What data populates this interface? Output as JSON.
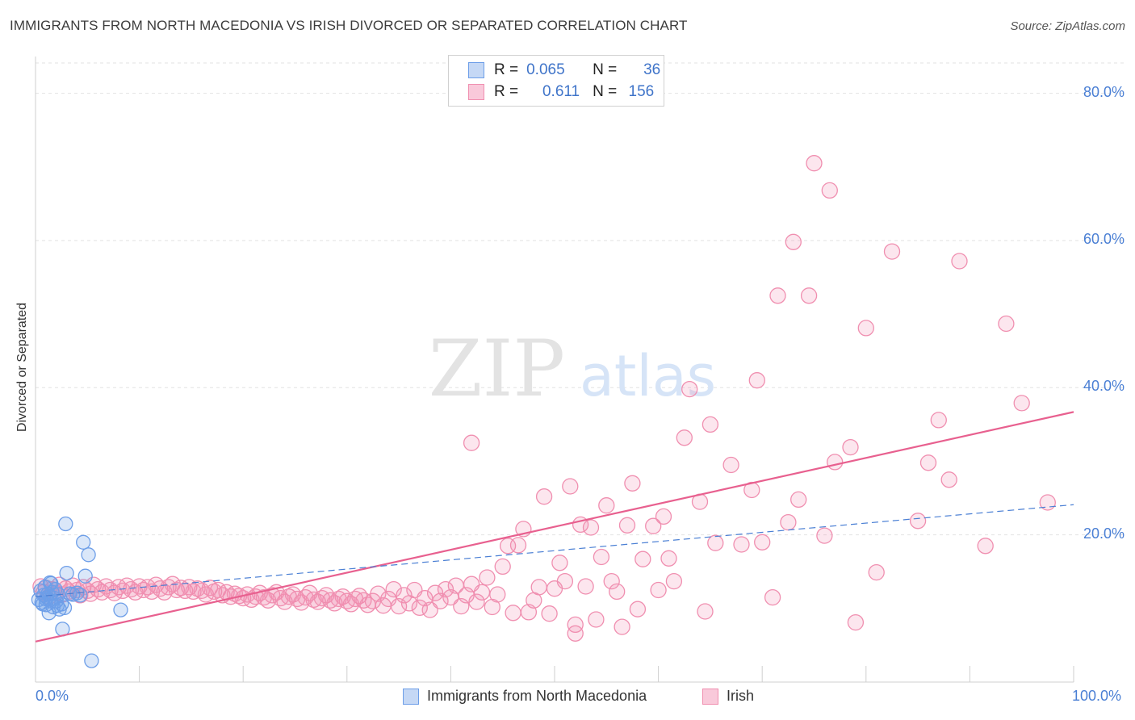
{
  "title": "IMMIGRANTS FROM NORTH MACEDONIA VS IRISH DIVORCED OR SEPARATED CORRELATION CHART",
  "source": "Source: ZipAtlas.com",
  "watermark": {
    "zip": "ZIP",
    "atlas": "atlas"
  },
  "legend": {
    "row1": {
      "r_label": "R =",
      "r_value": "0.065",
      "n_label": "N =",
      "n_value": "36"
    },
    "row2": {
      "r_label": "R =",
      "r_value": "0.611",
      "n_label": "N =",
      "n_value": "156"
    }
  },
  "colors": {
    "blue": "#6d9ee8",
    "pink": "#f08fb0",
    "pink_line": "#e8608f",
    "blue_line": "#4a7fd4"
  },
  "chart_data": {
    "type": "scatter",
    "title": "IMMIGRANTS FROM NORTH MACEDONIA VS IRISH DIVORCED OR SEPARATED CORRELATION CHART",
    "xlabel": "",
    "ylabel": "Divorced or Separated",
    "xlim": [
      0,
      100
    ],
    "ylim": [
      0,
      85
    ],
    "x_tick_labels": [
      "0.0%",
      "100.0%"
    ],
    "y_tick_labels": [
      "20.0%",
      "40.0%",
      "60.0%",
      "80.0%"
    ],
    "y_tick_values": [
      20,
      40,
      60,
      80
    ],
    "grid": true,
    "legend_position": "bottom",
    "series": [
      {
        "name": "Immigrants from North Macedonia",
        "color": "#6d9ee8",
        "r": 0.065,
        "n": 36,
        "trend": {
          "x0": 0,
          "y0": 11.6,
          "x1": 100,
          "y1": 24.1,
          "style": "dashed"
        },
        "points": [
          [
            0.3,
            11.2
          ],
          [
            0.5,
            12.4
          ],
          [
            0.6,
            10.8
          ],
          [
            0.8,
            11.8
          ],
          [
            0.9,
            12.9
          ],
          [
            1.0,
            10.5
          ],
          [
            1.1,
            11.5
          ],
          [
            1.2,
            12.0
          ],
          [
            1.3,
            9.4
          ],
          [
            1.4,
            13.5
          ],
          [
            1.5,
            11.0
          ],
          [
            1.6,
            12.2
          ],
          [
            1.7,
            10.2
          ],
          [
            1.8,
            11.4
          ],
          [
            1.9,
            12.6
          ],
          [
            2.0,
            11.0
          ],
          [
            2.1,
            10.4
          ],
          [
            2.2,
            11.9
          ],
          [
            2.3,
            9.9
          ],
          [
            2.5,
            10.6
          ],
          [
            2.6,
            7.2
          ],
          [
            2.8,
            10.1
          ],
          [
            2.9,
            21.5
          ],
          [
            3.0,
            14.8
          ],
          [
            3.3,
            12.0
          ],
          [
            3.6,
            11.9
          ],
          [
            4.0,
            12.1
          ],
          [
            4.3,
            11.8
          ],
          [
            4.6,
            19.0
          ],
          [
            5.1,
            17.3
          ],
          [
            5.4,
            2.9
          ],
          [
            8.2,
            9.8
          ],
          [
            1.0,
            11.3
          ],
          [
            0.7,
            10.6
          ],
          [
            1.5,
            13.4
          ],
          [
            4.8,
            14.4
          ]
        ]
      },
      {
        "name": "Irish",
        "color": "#f08fb0",
        "r": 0.611,
        "n": 156,
        "trend": {
          "x0": 0,
          "y0": 5.5,
          "x1": 100,
          "y1": 36.7,
          "style": "solid"
        },
        "points": [
          [
            0.5,
            13.0
          ],
          [
            0.8,
            12.2
          ],
          [
            1.0,
            12.8
          ],
          [
            1.3,
            11.6
          ],
          [
            1.6,
            12.6
          ],
          [
            2.0,
            12.1
          ],
          [
            2.3,
            13.2
          ],
          [
            2.6,
            11.9
          ],
          [
            2.9,
            12.7
          ],
          [
            3.2,
            12.3
          ],
          [
            3.6,
            13.1
          ],
          [
            4.0,
            12.5
          ],
          [
            4.3,
            11.8
          ],
          [
            4.6,
            12.9
          ],
          [
            5.0,
            12.4
          ],
          [
            5.3,
            12.0
          ],
          [
            5.6,
            13.2
          ],
          [
            6.0,
            12.6
          ],
          [
            6.4,
            12.2
          ],
          [
            6.8,
            13.0
          ],
          [
            7.2,
            12.5
          ],
          [
            7.6,
            12.1
          ],
          [
            8.0,
            12.9
          ],
          [
            8.4,
            12.4
          ],
          [
            8.8,
            13.1
          ],
          [
            9.2,
            12.6
          ],
          [
            9.6,
            12.2
          ],
          [
            10.0,
            13.0
          ],
          [
            10.4,
            12.5
          ],
          [
            10.8,
            12.9
          ],
          [
            11.2,
            12.3
          ],
          [
            11.6,
            13.2
          ],
          [
            12.0,
            12.7
          ],
          [
            12.4,
            12.2
          ],
          [
            12.8,
            12.9
          ],
          [
            13.2,
            13.3
          ],
          [
            13.6,
            12.5
          ],
          [
            14.0,
            12.8
          ],
          [
            14.4,
            12.4
          ],
          [
            14.8,
            12.9
          ],
          [
            15.2,
            12.3
          ],
          [
            15.6,
            12.7
          ],
          [
            16.0,
            12.4
          ],
          [
            16.4,
            11.9
          ],
          [
            16.8,
            12.8
          ],
          [
            17.2,
            12.3
          ],
          [
            17.6,
            12.5
          ],
          [
            18.0,
            11.8
          ],
          [
            18.4,
            12.2
          ],
          [
            18.8,
            11.6
          ],
          [
            19.2,
            12.0
          ],
          [
            19.6,
            11.7
          ],
          [
            20.0,
            11.4
          ],
          [
            20.4,
            11.9
          ],
          [
            20.8,
            11.2
          ],
          [
            21.2,
            11.6
          ],
          [
            21.6,
            12.1
          ],
          [
            22.0,
            11.5
          ],
          [
            22.4,
            11.1
          ],
          [
            22.8,
            11.8
          ],
          [
            23.2,
            12.2
          ],
          [
            23.6,
            11.4
          ],
          [
            24.0,
            10.9
          ],
          [
            24.4,
            11.6
          ],
          [
            24.8,
            11.9
          ],
          [
            25.2,
            11.3
          ],
          [
            25.6,
            10.8
          ],
          [
            26.0,
            11.5
          ],
          [
            26.4,
            12.1
          ],
          [
            26.8,
            11.2
          ],
          [
            27.2,
            10.9
          ],
          [
            27.6,
            11.4
          ],
          [
            28.0,
            11.8
          ],
          [
            28.4,
            11.1
          ],
          [
            28.8,
            10.7
          ],
          [
            29.2,
            11.3
          ],
          [
            29.6,
            11.6
          ],
          [
            30.0,
            11.0
          ],
          [
            30.4,
            10.6
          ],
          [
            30.8,
            11.3
          ],
          [
            31.2,
            11.7
          ],
          [
            31.6,
            11.1
          ],
          [
            32.0,
            10.5
          ],
          [
            32.5,
            11.0
          ],
          [
            33.0,
            12.0
          ],
          [
            33.5,
            10.4
          ],
          [
            34.0,
            11.3
          ],
          [
            34.5,
            12.6
          ],
          [
            35.0,
            10.3
          ],
          [
            35.5,
            11.8
          ],
          [
            36.0,
            10.7
          ],
          [
            36.5,
            12.5
          ],
          [
            37.0,
            10.1
          ],
          [
            37.5,
            11.4
          ],
          [
            38.0,
            9.8
          ],
          [
            38.5,
            12.1
          ],
          [
            39.0,
            11.0
          ],
          [
            39.5,
            12.6
          ],
          [
            40.0,
            11.5
          ],
          [
            40.5,
            13.1
          ],
          [
            41.0,
            10.3
          ],
          [
            41.5,
            11.8
          ],
          [
            42.0,
            13.3
          ],
          [
            42.5,
            10.9
          ],
          [
            43.0,
            12.2
          ],
          [
            43.5,
            14.2
          ],
          [
            44.0,
            10.2
          ],
          [
            44.5,
            11.9
          ],
          [
            45.0,
            15.7
          ],
          [
            45.5,
            18.5
          ],
          [
            46.0,
            9.4
          ],
          [
            46.5,
            18.6
          ],
          [
            47.0,
            20.8
          ],
          [
            47.5,
            9.5
          ],
          [
            48.0,
            11.1
          ],
          [
            48.5,
            12.9
          ],
          [
            49.0,
            25.2
          ],
          [
            49.5,
            9.3
          ],
          [
            50.0,
            12.7
          ],
          [
            50.5,
            16.2
          ],
          [
            51.0,
            13.7
          ],
          [
            51.5,
            26.6
          ],
          [
            52.0,
            7.8
          ],
          [
            52.5,
            21.4
          ],
          [
            53.0,
            13.0
          ],
          [
            53.5,
            21.0
          ],
          [
            54.0,
            8.5
          ],
          [
            54.5,
            17.0
          ],
          [
            55.0,
            24.0
          ],
          [
            55.5,
            13.7
          ],
          [
            56.0,
            12.3
          ],
          [
            56.5,
            7.5
          ],
          [
            57.0,
            21.3
          ],
          [
            57.5,
            27.0
          ],
          [
            58.0,
            9.9
          ],
          [
            58.5,
            16.7
          ],
          [
            59.5,
            21.2
          ],
          [
            60.0,
            12.5
          ],
          [
            60.5,
            22.5
          ],
          [
            61.0,
            16.8
          ],
          [
            61.5,
            13.7
          ],
          [
            62.5,
            33.2
          ],
          [
            64.0,
            24.5
          ],
          [
            65.5,
            18.9
          ],
          [
            67.0,
            29.5
          ],
          [
            68.0,
            18.7
          ],
          [
            69.0,
            26.1
          ],
          [
            70.0,
            19.0
          ],
          [
            71.5,
            52.5
          ],
          [
            73.0,
            59.8
          ],
          [
            74.5,
            52.5
          ],
          [
            76.0,
            19.9
          ],
          [
            77.0,
            29.9
          ],
          [
            78.5,
            31.9
          ],
          [
            80.0,
            48.1
          ],
          [
            82.5,
            58.5
          ],
          [
            85.0,
            21.9
          ],
          [
            87.0,
            35.6
          ],
          [
            89.0,
            57.2
          ],
          [
            91.5,
            18.5
          ],
          [
            93.5,
            48.7
          ],
          [
            95.0,
            37.9
          ],
          [
            97.5,
            24.4
          ],
          [
            42.0,
            32.5
          ],
          [
            52.0,
            6.6
          ],
          [
            64.5,
            9.6
          ],
          [
            71.0,
            11.5
          ],
          [
            72.5,
            21.7
          ],
          [
            75.0,
            70.5
          ],
          [
            76.5,
            66.8
          ],
          [
            79.0,
            8.1
          ],
          [
            81.0,
            14.9
          ],
          [
            63.0,
            39.8
          ],
          [
            65.0,
            35.0
          ],
          [
            69.5,
            41.0
          ],
          [
            73.5,
            24.8
          ],
          [
            88.0,
            27.5
          ],
          [
            86.0,
            29.8
          ]
        ]
      }
    ]
  },
  "bottom_legend": {
    "item1": "Immigrants from North Macedonia",
    "item2": "Irish"
  }
}
